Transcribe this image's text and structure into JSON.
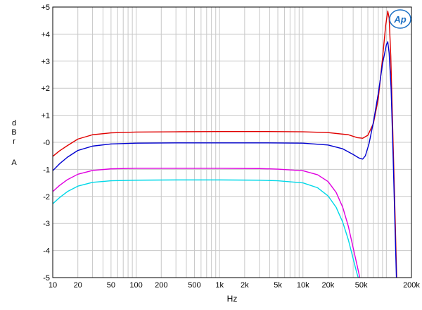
{
  "chart_data": {
    "type": "line",
    "title": "",
    "xlabel": "Hz",
    "ylabel": [
      "d",
      "B",
      "r",
      "A"
    ],
    "x_scale": "log",
    "xlim": [
      10,
      200000
    ],
    "ylim": [
      -5,
      5
    ],
    "grid": true,
    "x_ticks": [
      10,
      20,
      50,
      100,
      200,
      500,
      1000,
      2000,
      5000,
      10000,
      20000,
      50000,
      200000
    ],
    "x_tick_labels": [
      "10",
      "20",
      "50",
      "100",
      "200",
      "500",
      "1k",
      "2k",
      "5k",
      "10k",
      "20k",
      "50k",
      "200k"
    ],
    "y_ticks": [
      5,
      4,
      3,
      2,
      1,
      0,
      -1,
      -2,
      -3,
      -4,
      -5
    ],
    "y_tick_labels": [
      "+5",
      "+4",
      "+3",
      "+2",
      "+1",
      "-0",
      "-1",
      "-2",
      "-3",
      "-4",
      "-5"
    ],
    "series": [
      {
        "color": "#e00000",
        "points": [
          [
            10,
            -0.52
          ],
          [
            12,
            -0.32
          ],
          [
            15,
            -0.12
          ],
          [
            20,
            0.12
          ],
          [
            30,
            0.28
          ],
          [
            50,
            0.35
          ],
          [
            100,
            0.38
          ],
          [
            300,
            0.39
          ],
          [
            1000,
            0.4
          ],
          [
            3000,
            0.4
          ],
          [
            10000,
            0.39
          ],
          [
            20000,
            0.36
          ],
          [
            35000,
            0.28
          ],
          [
            45000,
            0.17
          ],
          [
            52000,
            0.15
          ],
          [
            60000,
            0.26
          ],
          [
            70000,
            0.7
          ],
          [
            80000,
            1.6
          ],
          [
            90000,
            3.1
          ],
          [
            98000,
            4.3
          ],
          [
            104000,
            4.85
          ],
          [
            108000,
            4.6
          ],
          [
            113000,
            3.2
          ],
          [
            120000,
            0.2
          ],
          [
            128000,
            -3.0
          ],
          [
            133000,
            -5.0
          ]
        ]
      },
      {
        "color": "#0000d0",
        "points": [
          [
            10,
            -1.05
          ],
          [
            12,
            -0.8
          ],
          [
            15,
            -0.55
          ],
          [
            20,
            -0.3
          ],
          [
            30,
            -0.14
          ],
          [
            50,
            -0.06
          ],
          [
            100,
            -0.03
          ],
          [
            300,
            -0.02
          ],
          [
            1000,
            -0.02
          ],
          [
            3000,
            -0.02
          ],
          [
            10000,
            -0.03
          ],
          [
            20000,
            -0.1
          ],
          [
            30000,
            -0.24
          ],
          [
            40000,
            -0.45
          ],
          [
            47000,
            -0.58
          ],
          [
            52000,
            -0.62
          ],
          [
            56000,
            -0.5
          ],
          [
            62000,
            -0.05
          ],
          [
            70000,
            0.75
          ],
          [
            80000,
            1.8
          ],
          [
            90000,
            2.9
          ],
          [
            100000,
            3.6
          ],
          [
            104000,
            3.72
          ],
          [
            108000,
            3.3
          ],
          [
            114000,
            2.0
          ],
          [
            120000,
            -0.3
          ],
          [
            128000,
            -3.5
          ],
          [
            132000,
            -5.0
          ]
        ]
      },
      {
        "color": "#e000e0",
        "points": [
          [
            10,
            -1.82
          ],
          [
            12,
            -1.6
          ],
          [
            15,
            -1.38
          ],
          [
            20,
            -1.18
          ],
          [
            30,
            -1.04
          ],
          [
            50,
            -0.98
          ],
          [
            100,
            -0.96
          ],
          [
            300,
            -0.96
          ],
          [
            1000,
            -0.96
          ],
          [
            3000,
            -0.97
          ],
          [
            5000,
            -0.99
          ],
          [
            10000,
            -1.05
          ],
          [
            15000,
            -1.2
          ],
          [
            20000,
            -1.45
          ],
          [
            25000,
            -1.85
          ],
          [
            30000,
            -2.4
          ],
          [
            35000,
            -3.1
          ],
          [
            40000,
            -3.9
          ],
          [
            45000,
            -4.6
          ],
          [
            48000,
            -5.0
          ]
        ]
      },
      {
        "color": "#00d8e8",
        "points": [
          [
            10,
            -2.27
          ],
          [
            12,
            -2.05
          ],
          [
            15,
            -1.82
          ],
          [
            20,
            -1.62
          ],
          [
            30,
            -1.48
          ],
          [
            50,
            -1.42
          ],
          [
            100,
            -1.4
          ],
          [
            300,
            -1.39
          ],
          [
            1000,
            -1.39
          ],
          [
            3000,
            -1.4
          ],
          [
            5000,
            -1.42
          ],
          [
            10000,
            -1.5
          ],
          [
            15000,
            -1.68
          ],
          [
            20000,
            -1.98
          ],
          [
            25000,
            -2.4
          ],
          [
            30000,
            -2.95
          ],
          [
            35000,
            -3.6
          ],
          [
            40000,
            -4.3
          ],
          [
            44000,
            -4.8
          ],
          [
            46000,
            -5.0
          ]
        ]
      }
    ]
  },
  "logo": {
    "text": "Ap",
    "color": "#1a6fc4"
  }
}
